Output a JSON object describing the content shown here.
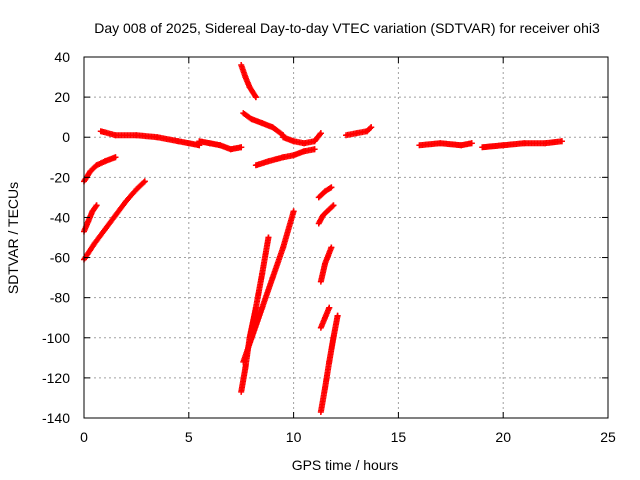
{
  "chart_data": {
    "type": "scatter",
    "title": "Day 008 of 2025, Sidereal Day-to-day VTEC variation (SDTVAR) for receiver ohi3",
    "xlabel": "GPS time / hours",
    "ylabel": "SDTVAR / TECUs",
    "xlim": [
      0,
      25
    ],
    "ylim": [
      -140,
      40
    ],
    "xticks": [
      0,
      5,
      10,
      15,
      20,
      25
    ],
    "yticks": [
      -140,
      -120,
      -100,
      -80,
      -60,
      -40,
      -20,
      0,
      20,
      40
    ],
    "grid": true,
    "marker": "plus",
    "color": "#ff0000",
    "series": [
      {
        "x": [
          0.0,
          0.3,
          0.6,
          1.0,
          1.5
        ],
        "y": [
          -22,
          -17,
          -14,
          -12,
          -10
        ]
      },
      {
        "x": [
          0.0,
          0.2,
          0.4,
          0.6
        ],
        "y": [
          -47,
          -42,
          -37,
          -34
        ]
      },
      {
        "x": [
          0.0,
          0.5,
          1.0,
          1.5,
          2.0,
          2.5,
          2.9
        ],
        "y": [
          -61,
          -53,
          -46,
          -39,
          -32,
          -26,
          -22
        ]
      },
      {
        "x": [
          0.8,
          1.5,
          2.5,
          3.5,
          4.5,
          5.0,
          5.5
        ],
        "y": [
          3,
          1,
          1,
          0,
          -2,
          -3,
          -4
        ]
      },
      {
        "x": [
          5.5,
          6.0,
          6.5,
          7.0,
          7.5
        ],
        "y": [
          -2,
          -3,
          -4,
          -6,
          -5
        ]
      },
      {
        "x": [
          7.5,
          7.7,
          7.9,
          8.2
        ],
        "y": [
          36,
          30,
          25,
          20
        ]
      },
      {
        "x": [
          7.6,
          8.0,
          8.5,
          9.0,
          9.5
        ],
        "y": [
          12,
          9,
          7,
          5,
          1
        ]
      },
      {
        "x": [
          9.5,
          10.0,
          10.5,
          11.0,
          11.3
        ],
        "y": [
          0,
          -2,
          -3,
          -2,
          2
        ]
      },
      {
        "x": [
          8.2,
          8.8,
          9.5,
          10.0,
          10.5,
          11.0
        ],
        "y": [
          -14,
          -12,
          -10,
          -9,
          -7,
          -6
        ]
      },
      {
        "x": [
          7.5,
          7.7,
          7.9,
          8.2,
          8.5,
          8.8
        ],
        "y": [
          -127,
          -115,
          -100,
          -85,
          -68,
          -50
        ]
      },
      {
        "x": [
          7.6,
          8.0,
          8.5,
          9.0,
          9.5,
          10.0
        ],
        "y": [
          -112,
          -100,
          -85,
          -70,
          -55,
          -37
        ]
      },
      {
        "x": [
          11.2,
          11.5,
          11.8
        ],
        "y": [
          -30,
          -27,
          -25
        ]
      },
      {
        "x": [
          11.2,
          11.4,
          11.7,
          11.9
        ],
        "y": [
          -43,
          -39,
          -36,
          -34
        ]
      },
      {
        "x": [
          11.3,
          11.5,
          11.8
        ],
        "y": [
          -72,
          -63,
          -55
        ]
      },
      {
        "x": [
          11.3,
          11.5,
          11.7
        ],
        "y": [
          -95,
          -90,
          -85
        ]
      },
      {
        "x": [
          11.3,
          11.5,
          11.7,
          11.9,
          12.1
        ],
        "y": [
          -137,
          -125,
          -112,
          -100,
          -89
        ]
      },
      {
        "x": [
          12.5,
          13.0,
          13.5,
          13.7
        ],
        "y": [
          1,
          2,
          3,
          5
        ]
      },
      {
        "x": [
          16.0,
          17.0,
          18.0,
          18.5
        ],
        "y": [
          -4,
          -3,
          -4,
          -3
        ]
      },
      {
        "x": [
          19.0,
          20.0,
          21.0,
          22.0,
          22.8
        ],
        "y": [
          -5,
          -4,
          -3,
          -3,
          -2
        ]
      }
    ]
  }
}
